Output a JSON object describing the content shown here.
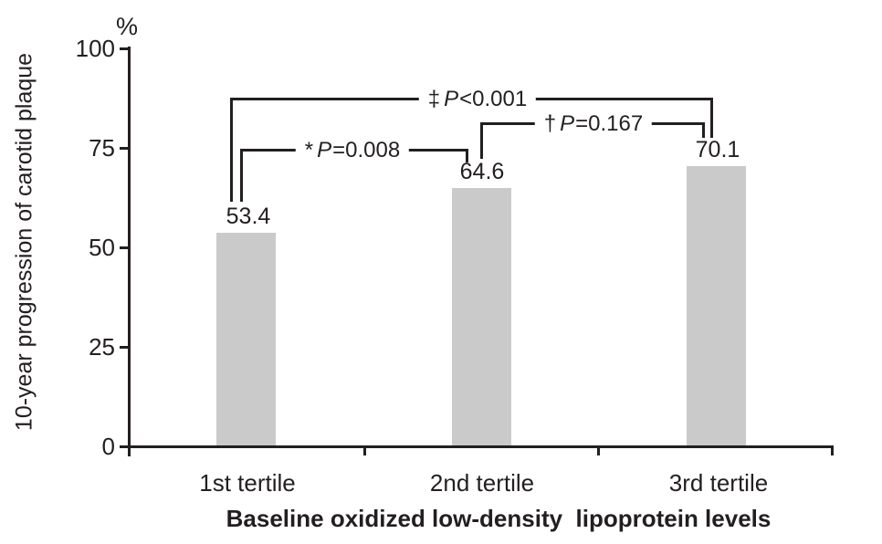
{
  "chart_data": {
    "type": "bar",
    "unit_label": "%",
    "ylabel": "10-year progression of carotid plaque",
    "xlabel": "Baseline oxidized low-density  lipoprotein levels",
    "categories": [
      "1st tertile",
      "2nd tertile",
      "3rd tertile"
    ],
    "values": [
      53.4,
      64.6,
      70.1
    ],
    "ylim": [
      0,
      100
    ],
    "yticks": [
      0,
      25,
      50,
      75,
      100
    ],
    "grid": false,
    "legend": false,
    "bar_color": "#cacaca",
    "line_color": "#231f20",
    "significance": [
      {
        "marker": "*",
        "p": "P",
        "relation": "=",
        "value": "0.008",
        "between": [
          "1st tertile",
          "2nd tertile"
        ]
      },
      {
        "marker": "†",
        "p": "P",
        "relation": "=",
        "value": "0.167",
        "between": [
          "2nd tertile",
          "3rd tertile"
        ]
      },
      {
        "marker": "‡",
        "p": "P",
        "relation": "<",
        "value": "0.001",
        "between": [
          "1st tertile",
          "3rd tertile"
        ]
      }
    ]
  }
}
